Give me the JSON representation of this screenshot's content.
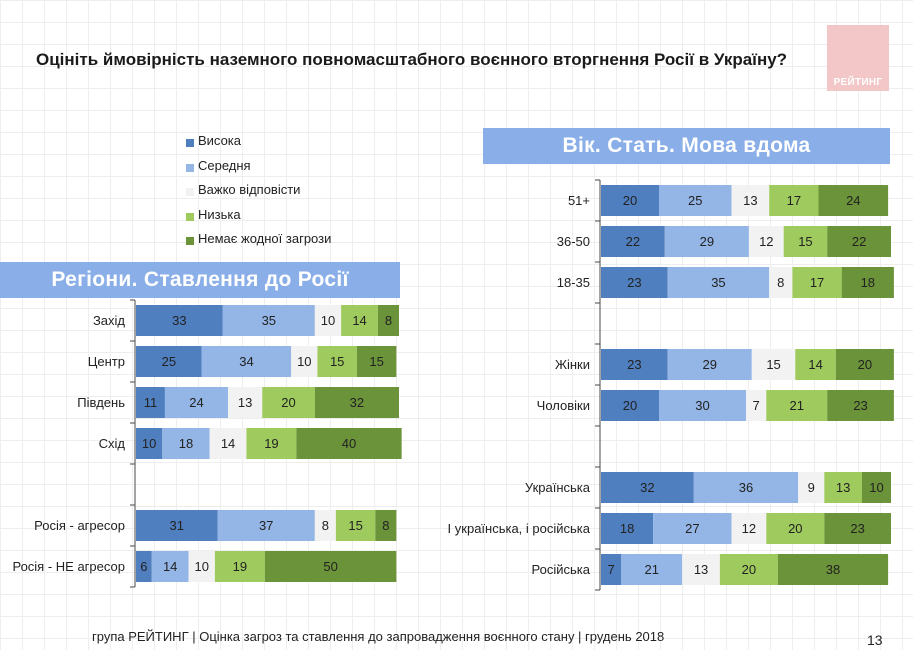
{
  "title": "Оцініть ймовірність наземного повномасштабного воєнного вторгнення Росії в Україну?",
  "logo_text": "РЕЙТИНГ",
  "colors": {
    "Висока": "#4f7fbf",
    "Середня": "#94b6e6",
    "Важко відповісти": "#f2f2f2",
    "Низька": "#9fca5e",
    "Немає жодної загрози": "#6b9339",
    "banner": "#8aaee8",
    "axis": "#4a4a4a"
  },
  "legend": [
    "Висока",
    "Середня",
    "Важко відповісти",
    "Низька",
    "Немає жодної загрози"
  ],
  "chart_data": [
    {
      "type": "bar",
      "orientation": "horizontal",
      "stacked": true,
      "title": "Регіони. Ставлення до Росії",
      "categories": [
        "Захід",
        "Центр",
        "Південь",
        "Схід",
        "",
        "Росія - агресор",
        "Росія - НЕ агресор"
      ],
      "series": [
        {
          "name": "Висока",
          "values": [
            33,
            25,
            11,
            10,
            null,
            31,
            6
          ]
        },
        {
          "name": "Середня",
          "values": [
            35,
            34,
            24,
            18,
            null,
            37,
            14
          ]
        },
        {
          "name": "Важко відповісти",
          "values": [
            10,
            10,
            13,
            14,
            null,
            8,
            10
          ]
        },
        {
          "name": "Низька",
          "values": [
            14,
            15,
            20,
            19,
            null,
            15,
            19
          ]
        },
        {
          "name": "Немає жодної загрози",
          "values": [
            8,
            15,
            32,
            40,
            null,
            8,
            50
          ]
        }
      ],
      "xlim": [
        0,
        100
      ],
      "data_labels": true
    },
    {
      "type": "bar",
      "orientation": "horizontal",
      "stacked": true,
      "title": "Вік. Стать. Мова вдома",
      "categories": [
        "51+",
        "36-50",
        "18-35",
        "",
        "Жінки",
        "Чоловіки",
        "",
        "Українська",
        "І українська, і російська",
        "Російська"
      ],
      "series": [
        {
          "name": "Висока",
          "values": [
            20,
            22,
            23,
            null,
            23,
            20,
            null,
            32,
            18,
            7
          ]
        },
        {
          "name": "Середня",
          "values": [
            25,
            29,
            35,
            null,
            29,
            30,
            null,
            36,
            27,
            21
          ]
        },
        {
          "name": "Важко відповісти",
          "values": [
            13,
            12,
            8,
            null,
            15,
            7,
            null,
            9,
            12,
            13
          ]
        },
        {
          "name": "Низька",
          "values": [
            17,
            15,
            17,
            null,
            14,
            21,
            null,
            13,
            20,
            20
          ]
        },
        {
          "name": "Немає жодної загрози",
          "values": [
            24,
            22,
            18,
            null,
            20,
            23,
            null,
            10,
            23,
            38
          ]
        }
      ],
      "xlim": [
        0,
        100
      ],
      "data_labels": true
    }
  ],
  "footer": "група РЕЙТИНГ | Оцінка загроз та ставлення до запровадження воєнного стану | грудень 2018",
  "page_number": "13"
}
